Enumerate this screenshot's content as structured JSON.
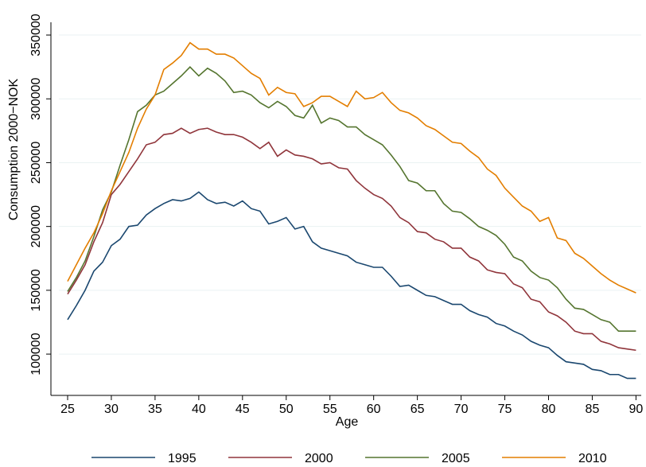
{
  "chart_data": {
    "type": "line",
    "x_label": "Age",
    "y_label": "Consumption 2000−NOK",
    "x": [
      25,
      26,
      27,
      28,
      29,
      30,
      31,
      32,
      33,
      34,
      35,
      36,
      37,
      38,
      39,
      40,
      41,
      42,
      43,
      44,
      45,
      46,
      47,
      48,
      49,
      50,
      51,
      52,
      53,
      54,
      55,
      56,
      57,
      58,
      59,
      60,
      61,
      62,
      63,
      64,
      65,
      66,
      67,
      68,
      69,
      70,
      71,
      72,
      73,
      74,
      75,
      76,
      77,
      78,
      79,
      80,
      81,
      82,
      83,
      84,
      85,
      86,
      87,
      88,
      89,
      90
    ],
    "series": [
      {
        "name": "1995",
        "color": "#1a476f",
        "values": [
          127000,
          138000,
          150000,
          165000,
          172000,
          185000,
          190000,
          200000,
          201000,
          209000,
          214000,
          218000,
          221000,
          220000,
          222000,
          227000,
          221000,
          218000,
          219000,
          216000,
          220000,
          214000,
          212000,
          202000,
          204000,
          207000,
          198000,
          200000,
          188000,
          183000,
          181000,
          179000,
          177000,
          172000,
          170000,
          168000,
          168000,
          161000,
          153000,
          154000,
          150000,
          146000,
          145000,
          142000,
          139000,
          139000,
          134000,
          131000,
          129000,
          124000,
          122000,
          118000,
          115000,
          110000,
          107000,
          105000,
          99000,
          94000,
          93000,
          92000,
          88000,
          87000,
          84000,
          84000,
          81000,
          81000
        ]
      },
      {
        "name": "2000",
        "color": "#90353b",
        "values": [
          147000,
          158000,
          170000,
          188000,
          203000,
          225000,
          233000,
          243000,
          253000,
          264000,
          266000,
          272000,
          273000,
          277000,
          273000,
          276000,
          277000,
          274000,
          272000,
          272000,
          270000,
          266000,
          261000,
          266000,
          255000,
          260000,
          256000,
          255000,
          253000,
          249000,
          250000,
          246000,
          245000,
          236000,
          230000,
          225000,
          222000,
          216000,
          207000,
          203000,
          196000,
          195000,
          190000,
          188000,
          183000,
          183000,
          176000,
          173000,
          166000,
          164000,
          163000,
          155000,
          152000,
          143000,
          141000,
          133000,
          130000,
          125000,
          118000,
          116000,
          116000,
          110000,
          108000,
          105000,
          104000,
          103000
        ]
      },
      {
        "name": "2005",
        "color": "#55752f",
        "values": [
          149000,
          160000,
          173000,
          192000,
          213000,
          227000,
          248000,
          268000,
          290000,
          295000,
          303000,
          306000,
          312000,
          318000,
          325000,
          318000,
          324000,
          320000,
          314000,
          305000,
          306000,
          303000,
          297000,
          293000,
          298000,
          294000,
          287000,
          285000,
          295000,
          281000,
          285000,
          283000,
          278000,
          278000,
          272000,
          268000,
          264000,
          256000,
          247000,
          236000,
          234000,
          228000,
          228000,
          218000,
          212000,
          211000,
          206000,
          200000,
          197000,
          193000,
          186000,
          176000,
          173000,
          165000,
          160000,
          158000,
          152000,
          143000,
          136000,
          135000,
          131000,
          127000,
          125000,
          118000,
          118000,
          118000
        ]
      },
      {
        "name": "2010",
        "color": "#e37e00",
        "values": [
          157000,
          170000,
          183000,
          195000,
          210000,
          228000,
          243000,
          258000,
          277000,
          292000,
          303000,
          323000,
          328000,
          334000,
          344000,
          339000,
          339000,
          335000,
          335000,
          332000,
          326000,
          320000,
          316000,
          303000,
          309000,
          305000,
          304000,
          294000,
          297000,
          302000,
          302000,
          298000,
          294000,
          306000,
          300000,
          301000,
          305000,
          297000,
          291000,
          289000,
          285000,
          279000,
          276000,
          271000,
          266000,
          265000,
          259000,
          254000,
          245000,
          240000,
          230000,
          223000,
          216000,
          212000,
          204000,
          207000,
          191000,
          189000,
          179000,
          175000,
          169000,
          163000,
          158000,
          154000,
          151000,
          148000
        ]
      }
    ],
    "xlim": [
      24,
      90.6
    ],
    "xticks": [
      25,
      30,
      35,
      40,
      45,
      50,
      55,
      60,
      65,
      70,
      75,
      80,
      85,
      90
    ],
    "ylim": [
      72000,
      360000
    ],
    "yticks": [
      100000,
      150000,
      200000,
      250000,
      300000,
      350000
    ],
    "grid": true,
    "legend": "bottom"
  }
}
